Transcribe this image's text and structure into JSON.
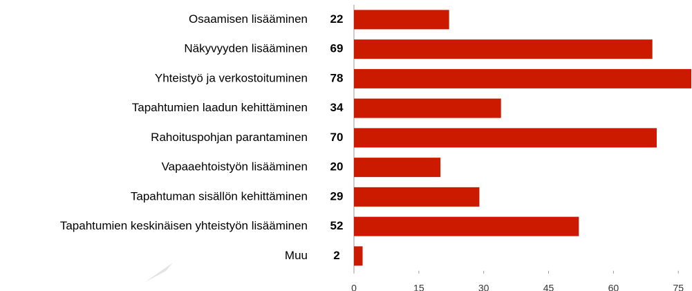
{
  "chart_data": {
    "type": "bar",
    "orientation": "horizontal",
    "categories": [
      "Osaamisen lisääminen",
      "Näkyvyyden lisääminen",
      "Yhteistyö ja verkostoituminen",
      "Tapahtumien laadun kehittäminen",
      "Rahoituspohjan parantaminen",
      "Vapaaehtoistyön lisääminen",
      "Tapahtuman sisällön kehittäminen",
      "Tapahtumien keskinäisen yhteistyön lisääminen",
      "Muu"
    ],
    "values": [
      22,
      69,
      78,
      34,
      70,
      20,
      29,
      52,
      2
    ],
    "color": "#cc1a00",
    "xlim": [
      0,
      78
    ],
    "xticks": [
      0,
      15,
      30,
      45,
      60,
      75
    ]
  }
}
